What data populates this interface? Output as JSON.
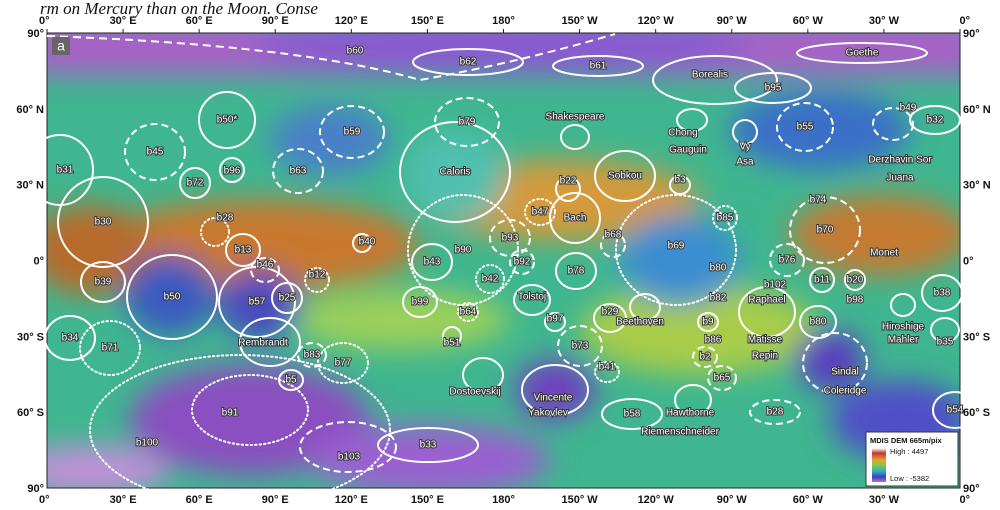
{
  "caption": "rm on Mercury than on the Moon. Conse",
  "panel_label": "a",
  "longitude_labels": [
    "0°",
    "30° E",
    "60° E",
    "90° E",
    "120° E",
    "150° E",
    "180°",
    "150° W",
    "120° W",
    "90° W",
    "60° W",
    "30° W",
    "0°"
  ],
  "latitude_labels": [
    "90°",
    "60° N",
    "30° N",
    "0°",
    "30° S",
    "60° S",
    "90°"
  ],
  "features": [
    "b60",
    "b62",
    "b61",
    "Goethe",
    "Borealis",
    "b95",
    "b50*",
    "b45",
    "b59",
    "b79",
    "Shakespeare",
    "Chong",
    "Gauguin",
    "Vy",
    "Asa",
    "b55",
    "b49",
    "b32",
    "Derzhavin Sor",
    "Juana",
    "b31",
    "b72",
    "b96",
    "b63",
    "Caloris",
    "b22",
    "Sobkou",
    "b3",
    "b30",
    "b28",
    "b47",
    "Bach",
    "b85",
    "b74",
    "b70",
    "b13",
    "b40",
    "b90",
    "b93",
    "b68",
    "b69",
    "b43",
    "b92",
    "b78",
    "b46",
    "b12",
    "b76",
    "Monet",
    "b39",
    "b50",
    "b42",
    "b80",
    "Tolstoj",
    "b11",
    "b20",
    "b57",
    "b25",
    "b99",
    "b82",
    "b38",
    "b102",
    "Raphael",
    "b98",
    "b64",
    "b29",
    "Beethoven",
    "b97",
    "b9",
    "b80",
    "Hiroshige",
    "Mahler",
    "b34",
    "b71",
    "b51",
    "Rembrandt",
    "b86",
    "b73",
    "b83",
    "b77",
    "Matisse",
    "Repin",
    "b35",
    "b2",
    "b41",
    "b5",
    "Dostoevskij",
    "Vincente",
    "Yakovlev",
    "b65",
    "Sindal",
    "Coleridge",
    "Hawthorne",
    "Riemenschneider",
    "b91",
    "b58",
    "b28",
    "b54",
    "b100",
    "b33",
    "b103"
  ],
  "legend": {
    "title": "MDIS DEM 665m/pix",
    "high": "High : 4497",
    "low": "Low : -5382"
  }
}
